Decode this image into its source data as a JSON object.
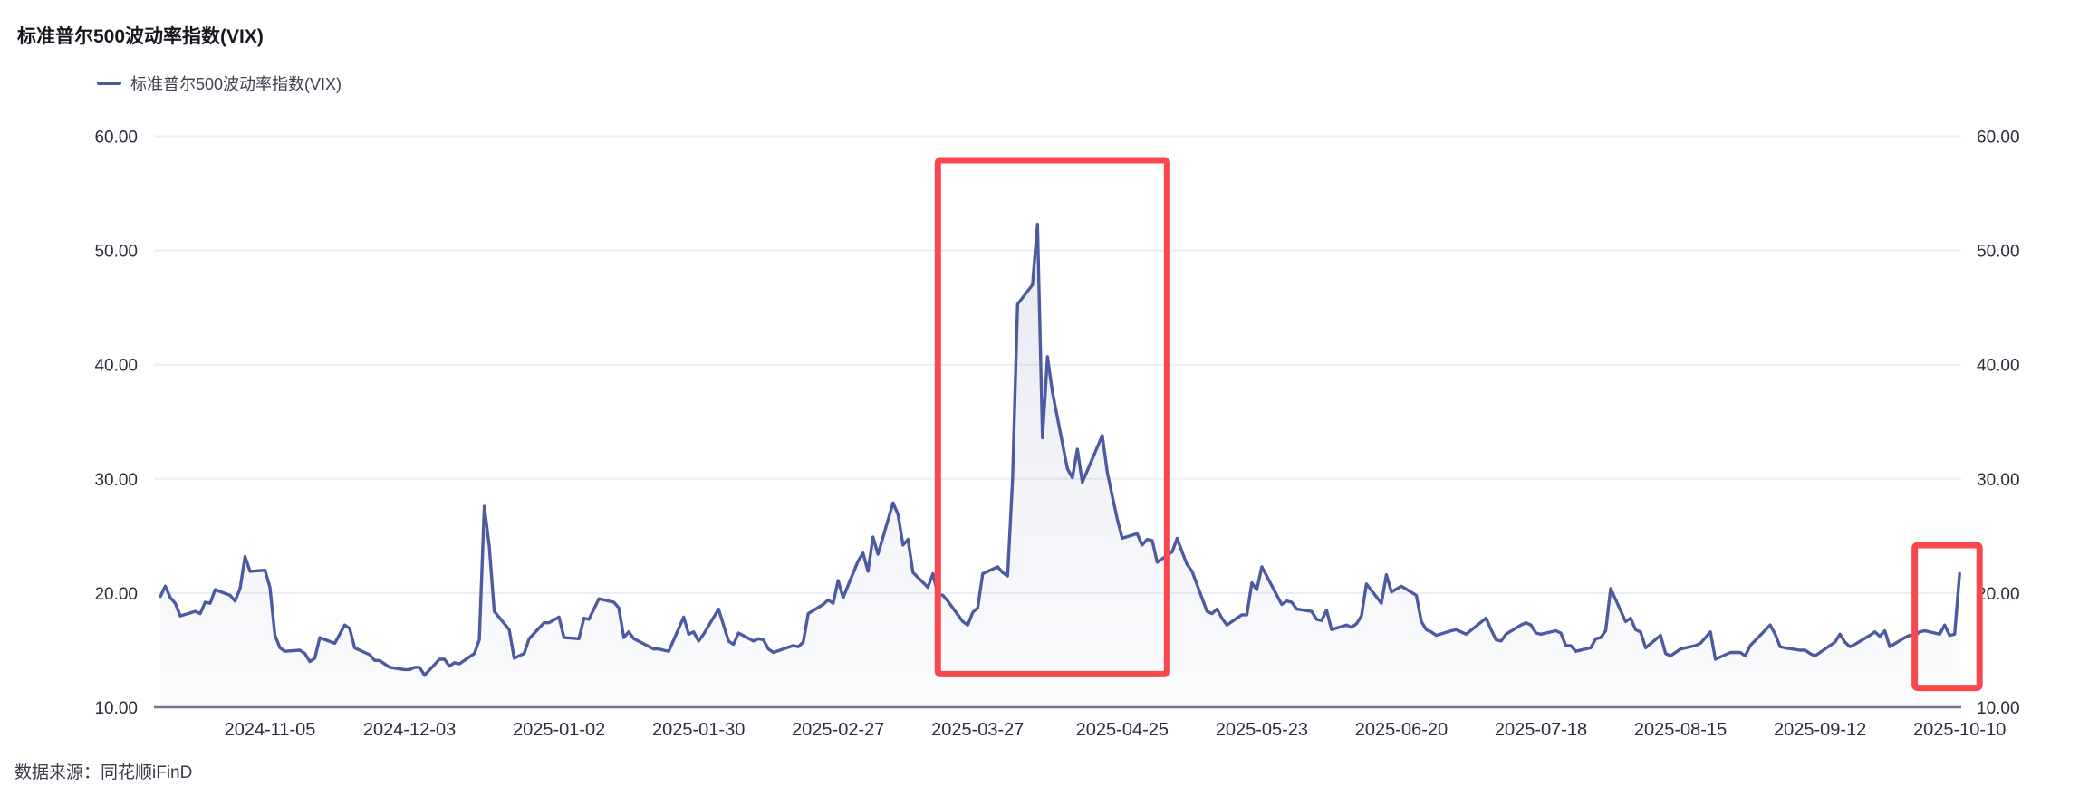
{
  "page": {
    "title": "标准普尔500波动率指数(VIX)",
    "source_label": "数据来源：同花顺iFinD"
  },
  "legend": {
    "label": "标准普尔500波动率指数(VIX)"
  },
  "colors": {
    "line": "#4b5aa1",
    "grid": "#eceef4",
    "axis_line": "#6e7494",
    "tick_text": "#2c2c3e",
    "highlight_red": "#f8484d"
  },
  "chart_data": {
    "type": "line",
    "title": "标准普尔500波动率指数(VIX)",
    "xlabel": "",
    "ylabel": "",
    "ylim": [
      10,
      60
    ],
    "grid": "horizontal",
    "legend_position": "top-left",
    "y_ticks": [
      60,
      50,
      40,
      30,
      20,
      10
    ],
    "y_tick_labels": [
      "60.00",
      "50.00",
      "40.00",
      "30.00",
      "20.00",
      "10.00"
    ],
    "x_ticks": [
      "2024-11-05",
      "2024-12-03",
      "2025-01-02",
      "2025-01-30",
      "2025-02-27",
      "2025-03-27",
      "2025-04-25",
      "2025-05-23",
      "2025-06-20",
      "2025-07-18",
      "2025-08-15",
      "2025-09-12",
      "2025-10-10"
    ],
    "series": [
      {
        "name": "标准普尔500波动率指数(VIX)",
        "color": "#4b5aa1",
        "points": [
          [
            "2024-10-14",
            19.7
          ],
          [
            "2024-10-15",
            20.6
          ],
          [
            "2024-10-16",
            19.6
          ],
          [
            "2024-10-17",
            19.1
          ],
          [
            "2024-10-18",
            18.0
          ],
          [
            "2024-10-21",
            18.4
          ],
          [
            "2024-10-22",
            18.2
          ],
          [
            "2024-10-23",
            19.2
          ],
          [
            "2024-10-24",
            19.1
          ],
          [
            "2024-10-25",
            20.3
          ],
          [
            "2024-10-28",
            19.8
          ],
          [
            "2024-10-29",
            19.3
          ],
          [
            "2024-10-30",
            20.4
          ],
          [
            "2024-10-31",
            23.2
          ],
          [
            "2024-11-01",
            21.9
          ],
          [
            "2024-11-04",
            22.0
          ],
          [
            "2024-11-05",
            20.5
          ],
          [
            "2024-11-06",
            16.3
          ],
          [
            "2024-11-07",
            15.2
          ],
          [
            "2024-11-08",
            14.9
          ],
          [
            "2024-11-11",
            15.0
          ],
          [
            "2024-11-12",
            14.7
          ],
          [
            "2024-11-13",
            14.0
          ],
          [
            "2024-11-14",
            14.3
          ],
          [
            "2024-11-15",
            16.1
          ],
          [
            "2024-11-18",
            15.6
          ],
          [
            "2024-11-19",
            16.4
          ],
          [
            "2024-11-20",
            17.2
          ],
          [
            "2024-11-21",
            16.9
          ],
          [
            "2024-11-22",
            15.2
          ],
          [
            "2024-11-25",
            14.6
          ],
          [
            "2024-11-26",
            14.1
          ],
          [
            "2024-11-27",
            14.1
          ],
          [
            "2024-11-29",
            13.5
          ],
          [
            "2024-12-02",
            13.3
          ],
          [
            "2024-12-03",
            13.3
          ],
          [
            "2024-12-04",
            13.5
          ],
          [
            "2024-12-05",
            13.5
          ],
          [
            "2024-12-06",
            12.8
          ],
          [
            "2024-12-09",
            14.2
          ],
          [
            "2024-12-10",
            14.2
          ],
          [
            "2024-12-11",
            13.6
          ],
          [
            "2024-12-12",
            13.9
          ],
          [
            "2024-12-13",
            13.8
          ],
          [
            "2024-12-16",
            14.7
          ],
          [
            "2024-12-17",
            15.9
          ],
          [
            "2024-12-18",
            27.6
          ],
          [
            "2024-12-19",
            24.1
          ],
          [
            "2024-12-20",
            18.4
          ],
          [
            "2024-12-23",
            16.8
          ],
          [
            "2024-12-24",
            14.3
          ],
          [
            "2024-12-26",
            14.7
          ],
          [
            "2024-12-27",
            16.0
          ],
          [
            "2024-12-30",
            17.4
          ],
          [
            "2024-12-31",
            17.4
          ],
          [
            "2025-01-02",
            17.9
          ],
          [
            "2025-01-03",
            16.1
          ],
          [
            "2025-01-06",
            16.0
          ],
          [
            "2025-01-07",
            17.8
          ],
          [
            "2025-01-08",
            17.7
          ],
          [
            "2025-01-10",
            19.5
          ],
          [
            "2025-01-13",
            19.2
          ],
          [
            "2025-01-14",
            18.7
          ],
          [
            "2025-01-15",
            16.1
          ],
          [
            "2025-01-16",
            16.6
          ],
          [
            "2025-01-17",
            16.0
          ],
          [
            "2025-01-21",
            15.1
          ],
          [
            "2025-01-22",
            15.1
          ],
          [
            "2025-01-23",
            15.0
          ],
          [
            "2025-01-24",
            14.9
          ],
          [
            "2025-01-27",
            17.9
          ],
          [
            "2025-01-28",
            16.4
          ],
          [
            "2025-01-29",
            16.6
          ],
          [
            "2025-01-30",
            15.8
          ],
          [
            "2025-01-31",
            16.4
          ],
          [
            "2025-02-03",
            18.6
          ],
          [
            "2025-02-04",
            17.2
          ],
          [
            "2025-02-05",
            15.8
          ],
          [
            "2025-02-06",
            15.5
          ],
          [
            "2025-02-07",
            16.5
          ],
          [
            "2025-02-10",
            15.8
          ],
          [
            "2025-02-11",
            16.0
          ],
          [
            "2025-02-12",
            15.9
          ],
          [
            "2025-02-13",
            15.1
          ],
          [
            "2025-02-14",
            14.8
          ],
          [
            "2025-02-18",
            15.4
          ],
          [
            "2025-02-19",
            15.3
          ],
          [
            "2025-02-20",
            15.7
          ],
          [
            "2025-02-21",
            18.2
          ],
          [
            "2025-02-24",
            19.0
          ],
          [
            "2025-02-25",
            19.4
          ],
          [
            "2025-02-26",
            19.1
          ],
          [
            "2025-02-27",
            21.1
          ],
          [
            "2025-02-28",
            19.6
          ],
          [
            "2025-03-03",
            22.8
          ],
          [
            "2025-03-04",
            23.5
          ],
          [
            "2025-03-05",
            21.9
          ],
          [
            "2025-03-06",
            24.9
          ],
          [
            "2025-03-07",
            23.4
          ],
          [
            "2025-03-10",
            27.9
          ],
          [
            "2025-03-11",
            26.9
          ],
          [
            "2025-03-12",
            24.2
          ],
          [
            "2025-03-13",
            24.7
          ],
          [
            "2025-03-14",
            21.8
          ],
          [
            "2025-03-17",
            20.5
          ],
          [
            "2025-03-18",
            21.7
          ],
          [
            "2025-03-19",
            19.9
          ],
          [
            "2025-03-20",
            19.8
          ],
          [
            "2025-03-21",
            19.3
          ],
          [
            "2025-03-24",
            17.5
          ],
          [
            "2025-03-25",
            17.2
          ],
          [
            "2025-03-26",
            18.3
          ],
          [
            "2025-03-27",
            18.7
          ],
          [
            "2025-03-28",
            21.7
          ],
          [
            "2025-03-31",
            22.3
          ],
          [
            "2025-04-01",
            21.8
          ],
          [
            "2025-04-02",
            21.5
          ],
          [
            "2025-04-03",
            30.0
          ],
          [
            "2025-04-04",
            45.3
          ],
          [
            "2025-04-07",
            47.0
          ],
          [
            "2025-04-08",
            52.3
          ],
          [
            "2025-04-09",
            33.6
          ],
          [
            "2025-04-10",
            40.7
          ],
          [
            "2025-04-11",
            37.6
          ],
          [
            "2025-04-14",
            30.9
          ],
          [
            "2025-04-15",
            30.1
          ],
          [
            "2025-04-16",
            32.6
          ],
          [
            "2025-04-17",
            29.7
          ],
          [
            "2025-04-21",
            33.8
          ],
          [
            "2025-04-22",
            30.6
          ],
          [
            "2025-04-23",
            28.5
          ],
          [
            "2025-04-24",
            26.5
          ],
          [
            "2025-04-25",
            24.8
          ],
          [
            "2025-04-28",
            25.2
          ],
          [
            "2025-04-29",
            24.2
          ],
          [
            "2025-04-30",
            24.7
          ],
          [
            "2025-05-01",
            24.6
          ],
          [
            "2025-05-02",
            22.7
          ],
          [
            "2025-05-05",
            23.6
          ],
          [
            "2025-05-06",
            24.8
          ],
          [
            "2025-05-07",
            23.6
          ],
          [
            "2025-05-08",
            22.5
          ],
          [
            "2025-05-09",
            21.9
          ],
          [
            "2025-05-12",
            18.4
          ],
          [
            "2025-05-13",
            18.2
          ],
          [
            "2025-05-14",
            18.6
          ],
          [
            "2025-05-15",
            17.8
          ],
          [
            "2025-05-16",
            17.2
          ],
          [
            "2025-05-19",
            18.1
          ],
          [
            "2025-05-20",
            18.1
          ],
          [
            "2025-05-21",
            20.9
          ],
          [
            "2025-05-22",
            20.3
          ],
          [
            "2025-05-23",
            22.3
          ],
          [
            "2025-05-27",
            19.0
          ],
          [
            "2025-05-28",
            19.3
          ],
          [
            "2025-05-29",
            19.2
          ],
          [
            "2025-05-30",
            18.6
          ],
          [
            "2025-06-02",
            18.4
          ],
          [
            "2025-06-03",
            17.7
          ],
          [
            "2025-06-04",
            17.6
          ],
          [
            "2025-06-05",
            18.5
          ],
          [
            "2025-06-06",
            16.8
          ],
          [
            "2025-06-09",
            17.2
          ],
          [
            "2025-06-10",
            17.0
          ],
          [
            "2025-06-11",
            17.3
          ],
          [
            "2025-06-12",
            18.0
          ],
          [
            "2025-06-13",
            20.8
          ],
          [
            "2025-06-16",
            19.1
          ],
          [
            "2025-06-17",
            21.6
          ],
          [
            "2025-06-18",
            20.1
          ],
          [
            "2025-06-20",
            20.6
          ],
          [
            "2025-06-23",
            19.8
          ],
          [
            "2025-06-24",
            17.5
          ],
          [
            "2025-06-25",
            16.8
          ],
          [
            "2025-06-26",
            16.6
          ],
          [
            "2025-06-27",
            16.3
          ],
          [
            "2025-06-30",
            16.7
          ],
          [
            "2025-07-01",
            16.8
          ],
          [
            "2025-07-02",
            16.6
          ],
          [
            "2025-07-03",
            16.4
          ],
          [
            "2025-07-07",
            17.8
          ],
          [
            "2025-07-08",
            16.8
          ],
          [
            "2025-07-09",
            15.9
          ],
          [
            "2025-07-10",
            15.8
          ],
          [
            "2025-07-11",
            16.4
          ],
          [
            "2025-07-14",
            17.2
          ],
          [
            "2025-07-15",
            17.4
          ],
          [
            "2025-07-16",
            17.2
          ],
          [
            "2025-07-17",
            16.5
          ],
          [
            "2025-07-18",
            16.4
          ],
          [
            "2025-07-21",
            16.7
          ],
          [
            "2025-07-22",
            16.5
          ],
          [
            "2025-07-23",
            15.4
          ],
          [
            "2025-07-24",
            15.4
          ],
          [
            "2025-07-25",
            14.9
          ],
          [
            "2025-07-28",
            15.2
          ],
          [
            "2025-07-29",
            16.0
          ],
          [
            "2025-07-30",
            16.1
          ],
          [
            "2025-07-31",
            16.7
          ],
          [
            "2025-08-01",
            20.4
          ],
          [
            "2025-08-04",
            17.5
          ],
          [
            "2025-08-05",
            17.8
          ],
          [
            "2025-08-06",
            16.8
          ],
          [
            "2025-08-07",
            16.6
          ],
          [
            "2025-08-08",
            15.2
          ],
          [
            "2025-08-11",
            16.3
          ],
          [
            "2025-08-12",
            14.7
          ],
          [
            "2025-08-13",
            14.5
          ],
          [
            "2025-08-14",
            14.8
          ],
          [
            "2025-08-15",
            15.1
          ],
          [
            "2025-08-18",
            15.4
          ],
          [
            "2025-08-19",
            15.6
          ],
          [
            "2025-08-20",
            16.1
          ],
          [
            "2025-08-21",
            16.6
          ],
          [
            "2025-08-22",
            14.2
          ],
          [
            "2025-08-25",
            14.8
          ],
          [
            "2025-08-26",
            14.8
          ],
          [
            "2025-08-27",
            14.8
          ],
          [
            "2025-08-28",
            14.5
          ],
          [
            "2025-08-29",
            15.4
          ],
          [
            "2025-09-02",
            17.2
          ],
          [
            "2025-09-03",
            16.4
          ],
          [
            "2025-09-04",
            15.3
          ],
          [
            "2025-09-05",
            15.2
          ],
          [
            "2025-09-08",
            15.0
          ],
          [
            "2025-09-09",
            15.0
          ],
          [
            "2025-09-10",
            14.7
          ],
          [
            "2025-09-11",
            14.5
          ],
          [
            "2025-09-12",
            14.8
          ],
          [
            "2025-09-15",
            15.7
          ],
          [
            "2025-09-16",
            16.4
          ],
          [
            "2025-09-17",
            15.7
          ],
          [
            "2025-09-18",
            15.3
          ],
          [
            "2025-09-19",
            15.5
          ],
          [
            "2025-09-22",
            16.3
          ],
          [
            "2025-09-23",
            16.6
          ],
          [
            "2025-09-24",
            16.2
          ],
          [
            "2025-09-25",
            16.7
          ],
          [
            "2025-09-26",
            15.3
          ],
          [
            "2025-09-29",
            16.1
          ],
          [
            "2025-09-30",
            16.3
          ],
          [
            "2025-10-01",
            16.3
          ],
          [
            "2025-10-02",
            16.6
          ],
          [
            "2025-10-03",
            16.7
          ],
          [
            "2025-10-06",
            16.4
          ],
          [
            "2025-10-07",
            17.2
          ],
          [
            "2025-10-08",
            16.3
          ],
          [
            "2025-10-09",
            16.4
          ],
          [
            "2025-10-10",
            21.7
          ]
        ]
      }
    ],
    "annotations": [
      {
        "type": "rect",
        "label": "april-2025-spike-highlight",
        "color": "#f8484d",
        "x_from": "2025-03-19",
        "x_to": "2025-05-04",
        "y_from": 12.9,
        "y_to": 57.9
      },
      {
        "type": "rect",
        "label": "october-2025-jump-highlight",
        "color": "#f8484d",
        "x_from": "2025-10-01",
        "x_to": "2025-10-14",
        "y_from": 11.7,
        "y_to": 24.2
      }
    ]
  }
}
